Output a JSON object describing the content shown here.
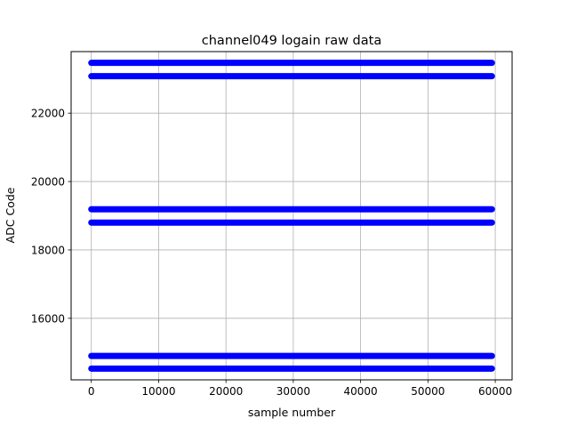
{
  "chart_data": {
    "type": "scatter",
    "title": "channel049 logain raw data",
    "xlabel": "sample number",
    "ylabel": "ADC Code",
    "xlim": [
      -3000,
      62500
    ],
    "ylim": [
      14200,
      23800
    ],
    "xticks": [
      0,
      10000,
      20000,
      30000,
      40000,
      50000,
      60000
    ],
    "xtick_labels": [
      "0",
      "10000",
      "20000",
      "30000",
      "40000",
      "50000",
      "60000"
    ],
    "yticks": [
      16000,
      18000,
      20000,
      22000
    ],
    "ytick_labels": [
      "16000",
      "18000",
      "20000",
      "22000"
    ],
    "grid": true,
    "marker_color": "#0000ff",
    "series": [
      {
        "bands": [
          {
            "y": 23470,
            "x_range": [
              0,
              59500
            ]
          },
          {
            "y": 23080,
            "x_range": [
              0,
              59500
            ]
          },
          {
            "y": 19190,
            "x_range": [
              0,
              59500
            ]
          },
          {
            "y": 18800,
            "x_range": [
              0,
              59500
            ]
          },
          {
            "y": 14900,
            "x_range": [
              0,
              59500
            ]
          },
          {
            "y": 14530,
            "x_range": [
              0,
              59500
            ]
          }
        ]
      }
    ]
  }
}
